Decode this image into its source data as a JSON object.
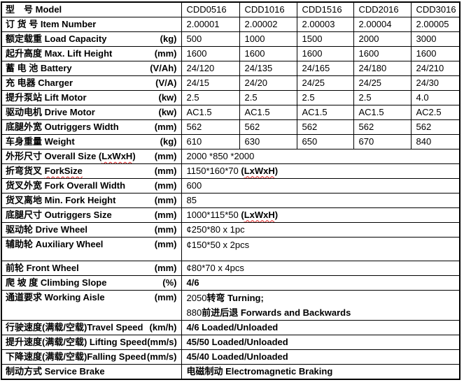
{
  "colors": {
    "background": "#ffffff",
    "text": "#000000",
    "border": "#000000",
    "spellcheck_underline": "#e02020"
  },
  "table": {
    "model_columns": [
      "CDD0516",
      "CDD1016",
      "CDD1516",
      "CDD2016",
      "CDD3016"
    ],
    "rows": [
      {
        "size": "normal",
        "label": [
          {
            "t": "型　号 Model"
          }
        ],
        "unit": "",
        "cells": [
          "CDD0516",
          "CDD1016",
          "CDD1516",
          "CDD2016",
          "CDD3016"
        ]
      },
      {
        "size": "normal",
        "label": [
          {
            "t": "订 货 号 Item Number"
          }
        ],
        "unit": "",
        "cells": [
          "2.00001",
          "2.00002",
          "2.00003",
          "2.00004",
          "2.00005"
        ]
      },
      {
        "size": "normal",
        "label": [
          {
            "t": "额定载重 Load Capacity"
          }
        ],
        "unit": "(kg)",
        "cells": [
          "500",
          "1000",
          "1500",
          "2000",
          "3000"
        ]
      },
      {
        "size": "normal",
        "label": [
          {
            "t": "起升高度 Max. Lift Height"
          }
        ],
        "unit": "(mm)",
        "cells": [
          "1600",
          "1600",
          "1600",
          "1600",
          "1600"
        ]
      },
      {
        "size": "normal",
        "label": [
          {
            "t": "蓄 电 池  Battery"
          }
        ],
        "unit": "(V/Ah)",
        "cells": [
          "24/120",
          "24/135",
          "24/165",
          "24/180",
          "24/210"
        ]
      },
      {
        "size": "normal",
        "label": [
          {
            "t": "充 电器 Charger"
          }
        ],
        "unit": "(V/A)",
        "cells": [
          "24/15",
          "24/20",
          "24/25",
          "24/25",
          "24/30"
        ]
      },
      {
        "size": "normal",
        "label": [
          {
            "t": "提升泵站  Lift Motor"
          }
        ],
        "unit": "(kw)",
        "cells": [
          "2.5",
          "2.5",
          "2.5",
          "2.5",
          "4.0"
        ]
      },
      {
        "size": "normal",
        "label": [
          {
            "t": "驱动电机 Drive Motor"
          }
        ],
        "unit": "(kw)",
        "cells": [
          "AC1.5",
          "AC1.5",
          "AC1.5",
          "AC1.5",
          "AC2.5"
        ]
      },
      {
        "size": "normal",
        "label": [
          {
            "t": "底腿外宽 Outriggers Width"
          }
        ],
        "unit": "(mm)",
        "cells": [
          "562",
          "562",
          "562",
          "562",
          "562"
        ]
      },
      {
        "size": "normal",
        "label": [
          {
            "t": "车身重量 Weight"
          }
        ],
        "unit": "(kg)",
        "cells": [
          "610",
          "630",
          "650",
          "670",
          "840"
        ]
      },
      {
        "size": "normal",
        "label": [
          {
            "t": "外形尺寸 Overall Size ("
          },
          {
            "t": "LxWxH",
            "wavy": true
          },
          {
            "t": ")"
          }
        ],
        "unit": "(mm)",
        "value_lines": [
          [
            {
              "t": "2000 *850 *2000"
            }
          ]
        ]
      },
      {
        "size": "normal",
        "label": [
          {
            "t": "折弯货叉 "
          },
          {
            "t": "ForkSize",
            "wavy": true
          }
        ],
        "unit": "(mm)",
        "value_lines": [
          [
            {
              "t": "1150*160*70 "
            },
            {
              "t": "(",
              "b": true
            },
            {
              "t": "LxWxH",
              "b": true,
              "wavy": true
            },
            {
              "t": ")",
              "b": true
            }
          ]
        ]
      },
      {
        "size": "normal",
        "label": [
          {
            "t": "货叉外宽 Fork Overall Width"
          }
        ],
        "unit": "(mm)",
        "value_lines": [
          [
            {
              "t": "600"
            }
          ]
        ]
      },
      {
        "size": "normal",
        "label": [
          {
            "t": "货叉离地 Min. Fork Height"
          }
        ],
        "unit": "(mm)",
        "value_lines": [
          [
            {
              "t": "85"
            }
          ]
        ]
      },
      {
        "size": "normal",
        "label": [
          {
            "t": "底腿尺寸  Outriggers  Size"
          }
        ],
        "unit": "(mm)",
        "value_lines": [
          [
            {
              "t": "1000*115*50 "
            },
            {
              "t": "(",
              "b": true
            },
            {
              "t": "LxWxH",
              "b": true,
              "wavy": true
            },
            {
              "t": ")",
              "b": true
            }
          ]
        ]
      },
      {
        "size": "normal",
        "label": [
          {
            "t": "驱动轮  Drive Wheel"
          }
        ],
        "unit": "(mm)",
        "value_lines": [
          [
            {
              "t": "¢250*80 x 1pc"
            }
          ]
        ]
      },
      {
        "size": "blank",
        "label": [
          {
            "t": "辅助轮 Auxiliary Wheel"
          }
        ],
        "unit": "(mm)",
        "value_lines": [
          [
            {
              "t": "¢150*50 x 2pcs"
            }
          ]
        ]
      },
      {
        "size": "normal",
        "label": [
          {
            "t": "前轮 Front Wheel"
          }
        ],
        "unit": "(mm)",
        "value_lines": [
          [
            {
              "t": "¢80*70 x 4pcs"
            }
          ]
        ]
      },
      {
        "size": "normal",
        "label": [
          {
            "t": "爬 坡 度 Climbing Slope"
          }
        ],
        "unit": "(%)",
        "value_lines": [
          [
            {
              "t": "4/6",
              "b": true
            }
          ]
        ]
      },
      {
        "size": "two",
        "label": [
          {
            "t": "通道要求  Working Aisle"
          }
        ],
        "unit": "(mm)",
        "value_lines": [
          [
            {
              "t": "2050"
            },
            {
              "t": "转弯 Turning;",
              "b": true
            }
          ],
          [
            {
              "t": "880"
            },
            {
              "t": "前进后退 Forwards and Backwards",
              "b": true
            }
          ]
        ]
      },
      {
        "size": "normal",
        "label": [
          {
            "t": "行驶速度(满载/空载)Travel Speed"
          }
        ],
        "unit": "(km/h)",
        "value_lines": [
          [
            {
              "t": "4/6 Loaded/Unloaded",
              "b": true
            }
          ]
        ]
      },
      {
        "size": "normal",
        "label": [
          {
            "t": "提升速度(满载/空载) Lifting Speed"
          }
        ],
        "unit": "(mm/s)",
        "value_lines": [
          [
            {
              "t": "45/50 Loaded/Unloaded",
              "b": true
            }
          ]
        ]
      },
      {
        "size": "normal",
        "label": [
          {
            "t": "下降速度(满载/空载)Falling Speed"
          }
        ],
        "unit": "(mm/s)",
        "value_lines": [
          [
            {
              "t": "45/40 Loaded/Unloaded",
              "b": true
            }
          ]
        ]
      },
      {
        "size": "short",
        "label": [
          {
            "t": "制动方式 Service Brake"
          }
        ],
        "unit": "",
        "value_lines": [
          [
            {
              "t": "电磁制动 Electromagnetic Braking",
              "b": true
            }
          ]
        ]
      }
    ]
  }
}
